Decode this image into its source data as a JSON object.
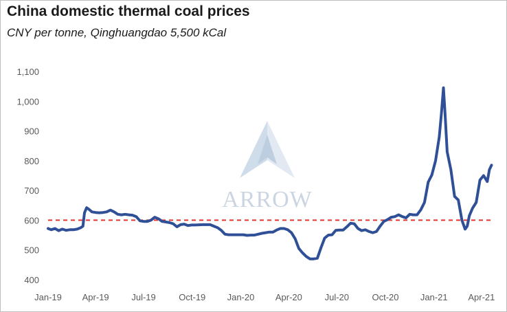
{
  "chart_data": {
    "type": "line",
    "title": "China domestic thermal coal prices",
    "subtitle": "CNY per tonne, Qinghuangdao 5,500 kCal",
    "ylim": [
      400,
      1100
    ],
    "yticks": [
      400,
      500,
      600,
      700,
      800,
      900,
      1000,
      1100
    ],
    "ytick_labels": [
      "400",
      "500",
      "600",
      "700",
      "800",
      "900",
      "1,000",
      "1,100"
    ],
    "xtick_labels": [
      "Jan-19",
      "Apr-19",
      "Jul-19",
      "Oct-19",
      "Jan-20",
      "Apr-20",
      "Jul-20",
      "Oct-20",
      "Jan-21",
      "Apr-21"
    ],
    "grid": false,
    "reference_line": {
      "value": 600,
      "style": "dashed",
      "color": "#e3342f"
    },
    "series": [
      {
        "color": "#2f4f96",
        "points": [
          [
            "2019-01-01",
            572
          ],
          [
            "2019-01-07",
            568
          ],
          [
            "2019-01-14",
            572
          ],
          [
            "2019-01-21",
            565
          ],
          [
            "2019-01-28",
            570
          ],
          [
            "2019-02-04",
            566
          ],
          [
            "2019-02-11",
            568
          ],
          [
            "2019-02-18",
            568
          ],
          [
            "2019-02-25",
            570
          ],
          [
            "2019-03-04",
            575
          ],
          [
            "2019-03-08",
            580
          ],
          [
            "2019-03-11",
            625
          ],
          [
            "2019-03-15",
            642
          ],
          [
            "2019-03-19",
            637
          ],
          [
            "2019-03-25",
            628
          ],
          [
            "2019-04-01",
            626
          ],
          [
            "2019-04-08",
            625
          ],
          [
            "2019-04-15",
            626
          ],
          [
            "2019-04-22",
            628
          ],
          [
            "2019-04-29",
            634
          ],
          [
            "2019-05-06",
            628
          ],
          [
            "2019-05-13",
            620
          ],
          [
            "2019-05-20",
            618
          ],
          [
            "2019-05-27",
            620
          ],
          [
            "2019-06-03",
            618
          ],
          [
            "2019-06-10",
            617
          ],
          [
            "2019-06-17",
            612
          ],
          [
            "2019-06-24",
            598
          ],
          [
            "2019-07-01",
            596
          ],
          [
            "2019-07-08",
            596
          ],
          [
            "2019-07-15",
            600
          ],
          [
            "2019-07-22",
            610
          ],
          [
            "2019-07-29",
            605
          ],
          [
            "2019-08-05",
            596
          ],
          [
            "2019-08-12",
            594
          ],
          [
            "2019-08-19",
            592
          ],
          [
            "2019-08-26",
            588
          ],
          [
            "2019-09-02",
            578
          ],
          [
            "2019-09-09",
            585
          ],
          [
            "2019-09-16",
            587
          ],
          [
            "2019-09-23",
            582
          ],
          [
            "2019-09-30",
            584
          ],
          [
            "2019-10-07",
            584
          ],
          [
            "2019-10-21",
            585
          ],
          [
            "2019-11-04",
            585
          ],
          [
            "2019-11-11",
            580
          ],
          [
            "2019-11-18",
            575
          ],
          [
            "2019-11-25",
            566
          ],
          [
            "2019-12-02",
            553
          ],
          [
            "2019-12-09",
            551
          ],
          [
            "2019-12-23",
            551
          ],
          [
            "2020-01-06",
            551
          ],
          [
            "2020-01-13",
            549
          ],
          [
            "2020-01-20",
            550
          ],
          [
            "2020-01-27",
            550
          ],
          [
            "2020-02-03",
            553
          ],
          [
            "2020-02-10",
            556
          ],
          [
            "2020-02-17",
            558
          ],
          [
            "2020-02-24",
            560
          ],
          [
            "2020-03-02",
            560
          ],
          [
            "2020-03-09",
            567
          ],
          [
            "2020-03-16",
            572
          ],
          [
            "2020-03-23",
            572
          ],
          [
            "2020-03-30",
            568
          ],
          [
            "2020-04-06",
            558
          ],
          [
            "2020-04-13",
            538
          ],
          [
            "2020-04-20",
            505
          ],
          [
            "2020-04-27",
            490
          ],
          [
            "2020-05-04",
            478
          ],
          [
            "2020-05-11",
            470
          ],
          [
            "2020-05-18",
            470
          ],
          [
            "2020-05-25",
            472
          ],
          [
            "2020-06-01",
            508
          ],
          [
            "2020-06-08",
            540
          ],
          [
            "2020-06-15",
            550
          ],
          [
            "2020-06-22",
            551
          ],
          [
            "2020-06-29",
            566
          ],
          [
            "2020-07-06",
            567
          ],
          [
            "2020-07-13",
            567
          ],
          [
            "2020-07-20",
            578
          ],
          [
            "2020-07-27",
            590
          ],
          [
            "2020-08-03",
            588
          ],
          [
            "2020-08-10",
            572
          ],
          [
            "2020-08-17",
            565
          ],
          [
            "2020-08-24",
            568
          ],
          [
            "2020-08-31",
            562
          ],
          [
            "2020-09-07",
            558
          ],
          [
            "2020-09-14",
            562
          ],
          [
            "2020-09-21",
            580
          ],
          [
            "2020-09-28",
            596
          ],
          [
            "2020-10-05",
            602
          ],
          [
            "2020-10-12",
            610
          ],
          [
            "2020-10-19",
            612
          ],
          [
            "2020-10-26",
            618
          ],
          [
            "2020-11-02",
            612
          ],
          [
            "2020-11-09",
            608
          ],
          [
            "2020-11-16",
            620
          ],
          [
            "2020-11-23",
            618
          ],
          [
            "2020-11-30",
            618
          ],
          [
            "2020-12-07",
            635
          ],
          [
            "2020-12-14",
            660
          ],
          [
            "2020-12-21",
            728
          ],
          [
            "2020-12-28",
            752
          ],
          [
            "2021-01-04",
            800
          ],
          [
            "2021-01-11",
            880
          ],
          [
            "2021-01-15",
            958
          ],
          [
            "2021-01-19",
            1045
          ],
          [
            "2021-01-22",
            960
          ],
          [
            "2021-01-26",
            830
          ],
          [
            "2021-02-02",
            770
          ],
          [
            "2021-02-09",
            680
          ],
          [
            "2021-02-16",
            668
          ],
          [
            "2021-02-23",
            600
          ],
          [
            "2021-03-01",
            570
          ],
          [
            "2021-03-05",
            580
          ],
          [
            "2021-03-09",
            615
          ],
          [
            "2021-03-15",
            640
          ],
          [
            "2021-03-22",
            660
          ],
          [
            "2021-03-29",
            735
          ],
          [
            "2021-04-05",
            750
          ],
          [
            "2021-04-12",
            730
          ],
          [
            "2021-04-16",
            770
          ],
          [
            "2021-04-20",
            785
          ]
        ]
      }
    ]
  },
  "watermark": {
    "text": "ARROW"
  }
}
